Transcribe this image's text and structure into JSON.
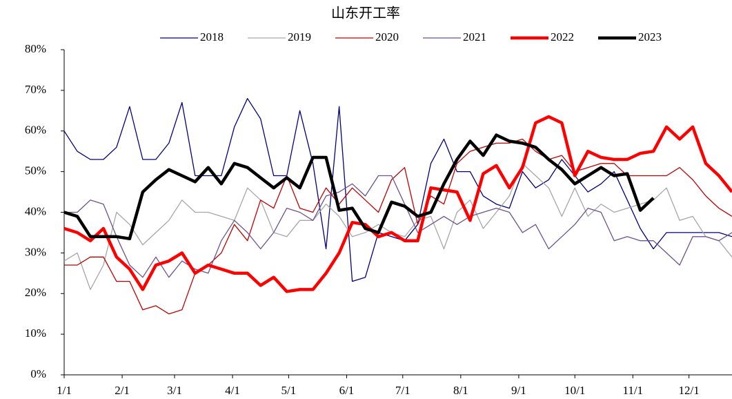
{
  "chart_data": {
    "type": "line",
    "title": "山东开工率",
    "x": [
      0,
      7,
      14,
      21,
      28,
      35,
      42,
      49,
      56,
      63,
      70,
      77,
      84,
      91,
      98,
      105,
      112,
      119,
      126,
      133,
      140,
      147,
      154,
      161,
      168,
      175,
      182,
      189,
      196,
      203,
      210,
      217,
      224,
      231,
      238,
      245,
      252,
      259,
      266,
      273,
      280,
      287,
      294,
      301,
      308,
      315,
      322,
      329,
      336,
      343,
      350,
      357
    ],
    "xlim": [
      0,
      357
    ],
    "xticks": [
      {
        "value": 0,
        "label": "1/1"
      },
      {
        "value": 31,
        "label": "2/1"
      },
      {
        "value": 59,
        "label": "3/1"
      },
      {
        "value": 90,
        "label": "4/1"
      },
      {
        "value": 120,
        "label": "5/1"
      },
      {
        "value": 151,
        "label": "6/1"
      },
      {
        "value": 181,
        "label": "7/1"
      },
      {
        "value": 212,
        "label": "8/1"
      },
      {
        "value": 243,
        "label": "9/1"
      },
      {
        "value": 273,
        "label": "10/1"
      },
      {
        "value": 304,
        "label": "11/1"
      },
      {
        "value": 334,
        "label": "12/1"
      }
    ],
    "ylim": [
      0,
      80
    ],
    "yticks": [
      {
        "value": 0,
        "label": "0%"
      },
      {
        "value": 10,
        "label": "10%"
      },
      {
        "value": 20,
        "label": "20%"
      },
      {
        "value": 30,
        "label": "30%"
      },
      {
        "value": 40,
        "label": "40%"
      },
      {
        "value": 50,
        "label": "50%"
      },
      {
        "value": 60,
        "label": "60%"
      },
      {
        "value": 70,
        "label": "70%"
      },
      {
        "value": 80,
        "label": "80%"
      }
    ],
    "legend": "top",
    "series": [
      {
        "name": "2018",
        "color": "#000080",
        "linewidth": 1.3,
        "values": [
          60,
          55,
          53,
          53,
          56,
          66,
          53,
          53,
          57,
          67,
          49,
          49,
          49,
          61,
          68,
          63,
          49,
          49,
          65,
          52,
          31,
          66,
          23,
          24,
          35,
          34,
          33,
          37,
          52,
          58,
          50,
          50,
          44,
          42,
          41,
          50,
          46,
          48,
          53,
          49,
          45,
          47,
          50,
          43,
          36,
          31,
          35,
          35,
          35,
          35,
          35,
          34
        ]
      },
      {
        "name": "2019",
        "color": "#a6a6a6",
        "linewidth": 1.3,
        "values": [
          28,
          30,
          21,
          27,
          40,
          37,
          32,
          35,
          38,
          43,
          40,
          40,
          39,
          38,
          46,
          43,
          35,
          34,
          38,
          38,
          42,
          39,
          34,
          35,
          37,
          35,
          34,
          38,
          39,
          31,
          40,
          43,
          36,
          40,
          44,
          52,
          49,
          46,
          39,
          46,
          39,
          42,
          40,
          41,
          42,
          43,
          46,
          38,
          39,
          34,
          33,
          29
        ]
      },
      {
        "name": "2020",
        "color": "#c00000",
        "linewidth": 1.3,
        "values": [
          27,
          27,
          29,
          29,
          23,
          23,
          16,
          17,
          15,
          16,
          25,
          27,
          30,
          37,
          33,
          43,
          41,
          49,
          41,
          40,
          46,
          42,
          46,
          43,
          40,
          48,
          51,
          37,
          44,
          42,
          52,
          55,
          56,
          57,
          57,
          58,
          55,
          53,
          54,
          50,
          51,
          52,
          52,
          49,
          49,
          49,
          49,
          51,
          48,
          44,
          41,
          39
        ]
      },
      {
        "name": "2021",
        "color": "#6b5290",
        "linewidth": 1.3,
        "values": [
          40,
          40,
          43,
          42,
          34,
          27,
          24,
          29,
          24,
          28,
          26,
          25,
          33,
          38,
          35,
          31,
          35,
          41,
          40,
          38,
          44,
          45,
          47,
          44,
          49,
          49,
          42,
          35,
          37,
          39,
          37,
          39,
          40,
          41,
          40,
          35,
          37,
          31,
          34,
          37,
          41,
          40,
          33,
          34,
          33,
          33,
          30,
          27,
          34,
          34,
          33,
          35
        ]
      },
      {
        "name": "2022",
        "color": "#ff0000",
        "linewidth": 4.5,
        "values": [
          36,
          35,
          33,
          36,
          29,
          26,
          21,
          27,
          28,
          30,
          25,
          27,
          26,
          25,
          25,
          22,
          24,
          20.5,
          21,
          21,
          25,
          30,
          37.5,
          37,
          34,
          35,
          33,
          33,
          46,
          45.5,
          45,
          38,
          49.5,
          51.5,
          46,
          51,
          62,
          63.5,
          62,
          49,
          55,
          53.5,
          53,
          53,
          54.5,
          55,
          61,
          58,
          61,
          52,
          49,
          45
        ]
      },
      {
        "name": "2023",
        "color": "#000000",
        "linewidth": 4.5,
        "values": [
          40,
          39,
          34,
          34,
          34,
          33.5,
          45,
          48,
          50.5,
          49,
          47.5,
          51,
          47,
          52,
          51,
          48.5,
          46,
          48.5,
          46,
          53.5,
          53.5,
          40.5,
          41,
          36,
          35,
          42.5,
          41.5,
          39,
          40,
          47,
          53,
          57.5,
          54,
          59,
          57.5,
          57,
          56,
          53,
          50.5,
          47,
          49,
          51,
          49,
          49.5,
          40.5,
          43.5,
          null,
          null,
          null,
          null,
          null,
          null
        ]
      }
    ]
  }
}
